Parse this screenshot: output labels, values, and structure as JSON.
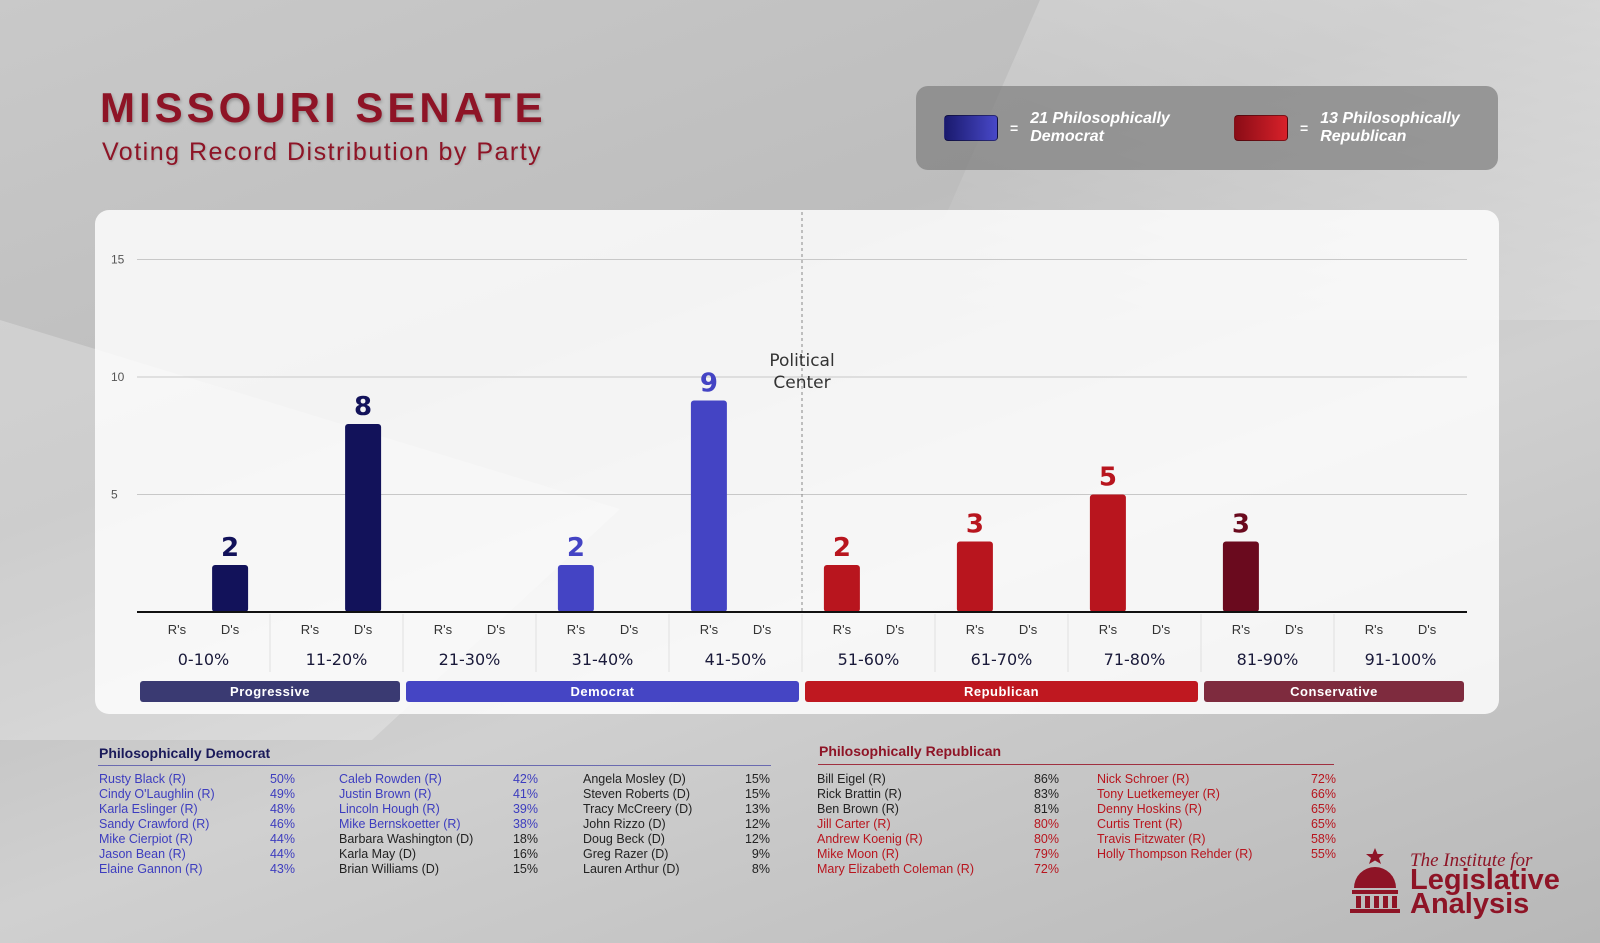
{
  "header": {
    "title": "MISSOURI SENATE",
    "subtitle": "Voting Record Distribution by Party"
  },
  "legend": {
    "dem_eq": "=",
    "dem_text": "21 Philosophically Democrat",
    "rep_eq": "=",
    "rep_text": "13 Philosophically Republican"
  },
  "colors": {
    "progressive": "#12125a",
    "democrat": "#4444c4",
    "republican": "#b8151e",
    "conservative": "#6a0a1e",
    "progressive_band": "#3a3a72",
    "democrat_band": "#4545c4",
    "republican_band": "#bf1820",
    "conservative_band": "#7e2b3e",
    "title": "#8e1426"
  },
  "chart_data": {
    "type": "bar",
    "categories": [
      "0-10%",
      "11-20%",
      "21-30%",
      "31-40%",
      "41-50%",
      "51-60%",
      "61-70%",
      "71-80%",
      "81-90%",
      "91-100%"
    ],
    "sub_categories": [
      "R's",
      "D's"
    ],
    "series": [
      {
        "name": "R's",
        "values": [
          0,
          0,
          0,
          2,
          9,
          2,
          3,
          5,
          3,
          0
        ]
      },
      {
        "name": "D's",
        "values": [
          2,
          8,
          0,
          0,
          0,
          0,
          0,
          0,
          0,
          0
        ]
      }
    ],
    "yticks": [
      5,
      10,
      15
    ],
    "ylim": [
      0,
      15.5
    ],
    "annotation": "Political Center",
    "annotation_lines": [
      "Political",
      "Center"
    ],
    "groups": [
      {
        "label": "Progressive",
        "from": 0,
        "to": 1,
        "color_key": "progressive_band"
      },
      {
        "label": "Democrat",
        "from": 2,
        "to": 4,
        "color_key": "democrat_band"
      },
      {
        "label": "Republican",
        "from": 5,
        "to": 7,
        "color_key": "republican_band"
      },
      {
        "label": "Conservative",
        "from": 8,
        "to": 9,
        "color_key": "conservative_band"
      }
    ],
    "grid": true,
    "legend_position": "top-right"
  },
  "dem_list": {
    "heading": "Philosophically Democrat",
    "columns": [
      [
        {
          "name": "Rusty Black (R)",
          "pct": "50%",
          "party": "R"
        },
        {
          "name": "Cindy O'Laughlin (R)",
          "pct": "49%",
          "party": "R"
        },
        {
          "name": "Karla Eslinger (R)",
          "pct": "48%",
          "party": "R"
        },
        {
          "name": "Sandy Crawford (R)",
          "pct": "46%",
          "party": "R"
        },
        {
          "name": "Mike Cierpiot (R)",
          "pct": "44%",
          "party": "R"
        },
        {
          "name": "Jason Bean (R)",
          "pct": "44%",
          "party": "R"
        },
        {
          "name": "Elaine Gannon (R)",
          "pct": "43%",
          "party": "R"
        }
      ],
      [
        {
          "name": "Caleb Rowden (R)",
          "pct": "42%",
          "party": "R"
        },
        {
          "name": "Justin Brown (R)",
          "pct": "41%",
          "party": "R"
        },
        {
          "name": "Lincoln Hough (R)",
          "pct": "39%",
          "party": "R"
        },
        {
          "name": "Mike Bernskoetter (R)",
          "pct": "38%",
          "party": "R"
        },
        {
          "name": "Barbara Washington (D)",
          "pct": "18%",
          "party": "D"
        },
        {
          "name": "Karla May (D)",
          "pct": "16%",
          "party": "D"
        },
        {
          "name": "Brian Williams (D)",
          "pct": "15%",
          "party": "D"
        }
      ],
      [
        {
          "name": "Angela Mosley (D)",
          "pct": "15%",
          "party": "D"
        },
        {
          "name": "Steven Roberts (D)",
          "pct": "15%",
          "party": "D"
        },
        {
          "name": "Tracy McCreery (D)",
          "pct": "13%",
          "party": "D"
        },
        {
          "name": "John Rizzo (D)",
          "pct": "12%",
          "party": "D"
        },
        {
          "name": "Doug Beck (D)",
          "pct": "12%",
          "party": "D"
        },
        {
          "name": "Greg Razer (D)",
          "pct": "9%",
          "party": "D"
        },
        {
          "name": "Lauren Arthur (D)",
          "pct": "8%",
          "party": "D"
        }
      ]
    ]
  },
  "rep_list": {
    "heading": "Philosophically Republican",
    "columns": [
      [
        {
          "name": "Bill Eigel (R)",
          "pct": "86%",
          "band": "conservative"
        },
        {
          "name": "Rick Brattin (R)",
          "pct": "83%",
          "band": "conservative"
        },
        {
          "name": "Ben Brown (R)",
          "pct": "81%",
          "band": "conservative"
        },
        {
          "name": "Jill Carter (R)",
          "pct": "80%",
          "band": "republican"
        },
        {
          "name": "Andrew Koenig (R)",
          "pct": "80%",
          "band": "republican"
        },
        {
          "name": "Mike Moon (R)",
          "pct": "79%",
          "band": "republican"
        },
        {
          "name": "Mary Elizabeth Coleman (R)",
          "pct": "72%",
          "band": "republican"
        }
      ],
      [
        {
          "name": "Nick Schroer (R)",
          "pct": "72%",
          "band": "republican"
        },
        {
          "name": "Tony Luetkemeyer (R)",
          "pct": "66%",
          "band": "republican"
        },
        {
          "name": "Denny Hoskins (R)",
          "pct": "65%",
          "band": "republican"
        },
        {
          "name": "Curtis Trent (R)",
          "pct": "65%",
          "band": "republican"
        },
        {
          "name": "Travis Fitzwater (R)",
          "pct": "58%",
          "band": "republican"
        },
        {
          "name": "Holly Thompson Rehder (R)",
          "pct": "55%",
          "band": "republican"
        }
      ]
    ]
  },
  "logo": {
    "top": "The Institute for",
    "line1": "Legislative",
    "line2": "Analysis"
  }
}
